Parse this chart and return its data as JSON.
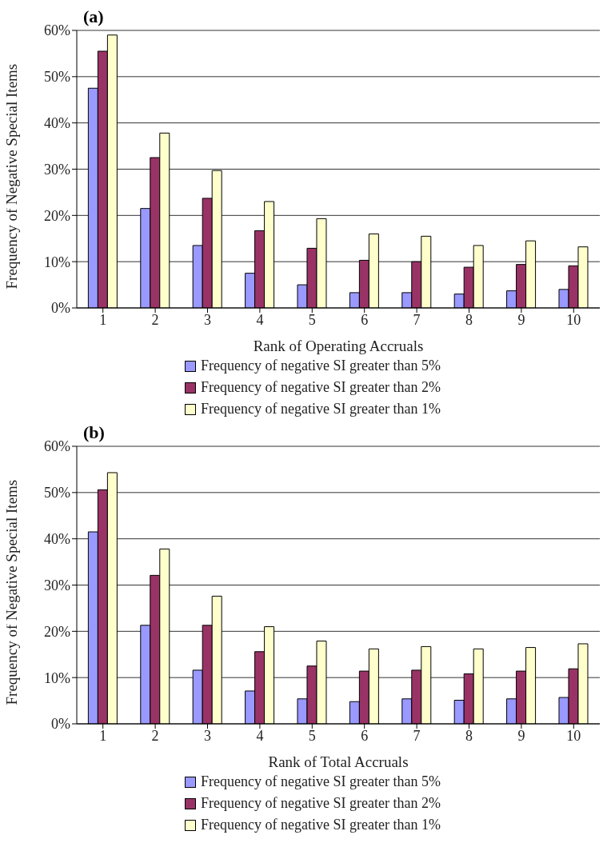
{
  "chart_data": [
    {
      "type": "bar",
      "title": "(a)",
      "xlabel": "Rank of Operating Accruals",
      "ylabel": "Frequency of Negative Special Items",
      "categories": [
        "1",
        "2",
        "3",
        "4",
        "5",
        "6",
        "7",
        "8",
        "9",
        "10"
      ],
      "series": [
        {
          "name": "Frequency of negative SI greater than 5%",
          "color": "#9999ff",
          "values": [
            47.5,
            21.5,
            13.5,
            7.5,
            5,
            3.3,
            3.3,
            3,
            3.7,
            4
          ]
        },
        {
          "name": "Frequency of negative SI greater than 2%",
          "color": "#993366",
          "values": [
            55.5,
            32.5,
            23.7,
            16.7,
            12.9,
            10.3,
            10,
            8.8,
            9.4,
            9.1
          ]
        },
        {
          "name": "Frequency of negative SI greater than 1%",
          "color": "#ffffcc",
          "values": [
            59,
            37.8,
            29.7,
            23,
            19.3,
            16,
            15.5,
            13.5,
            14.5,
            13.2
          ]
        }
      ],
      "ylim": [
        0,
        60
      ],
      "yticks": [
        {
          "value": 0,
          "label": "0%"
        },
        {
          "value": 10,
          "label": "10%"
        },
        {
          "value": 20,
          "label": "20%"
        },
        {
          "value": 30,
          "label": "30%"
        },
        {
          "value": 40,
          "label": "40%"
        },
        {
          "value": 50,
          "label": "50%"
        },
        {
          "value": 60,
          "label": "60%"
        }
      ],
      "grid": "y",
      "legend": "bottom"
    },
    {
      "type": "bar",
      "title": "(b)",
      "xlabel": "Rank of Total Accruals",
      "ylabel": "Frequency of Negative Special Items",
      "categories": [
        "1",
        "2",
        "3",
        "4",
        "5",
        "6",
        "7",
        "8",
        "9",
        "10"
      ],
      "series": [
        {
          "name": "Frequency of negative SI greater than 5%",
          "color": "#9999ff",
          "values": [
            41.5,
            21.3,
            11.6,
            7.1,
            5.4,
            4.8,
            5.4,
            5.1,
            5.4,
            5.7
          ]
        },
        {
          "name": "Frequency of negative SI greater than 2%",
          "color": "#993366",
          "values": [
            50.6,
            32.1,
            21.3,
            15.6,
            12.5,
            11.4,
            11.6,
            10.8,
            11.4,
            11.9
          ]
        },
        {
          "name": "Frequency of negative SI greater than 1%",
          "color": "#ffffcc",
          "values": [
            54.3,
            37.8,
            27.6,
            21,
            17.9,
            16.2,
            16.7,
            16.2,
            16.5,
            17.3
          ]
        }
      ],
      "ylim": [
        0,
        60
      ],
      "yticks": [
        {
          "value": 0,
          "label": "0%"
        },
        {
          "value": 10,
          "label": "10%"
        },
        {
          "value": 20,
          "label": "20%"
        },
        {
          "value": 30,
          "label": "30%"
        },
        {
          "value": 40,
          "label": "40%"
        },
        {
          "value": 50,
          "label": "50%"
        },
        {
          "value": 60,
          "label": "60%"
        }
      ],
      "grid": "y",
      "legend": "bottom"
    }
  ]
}
